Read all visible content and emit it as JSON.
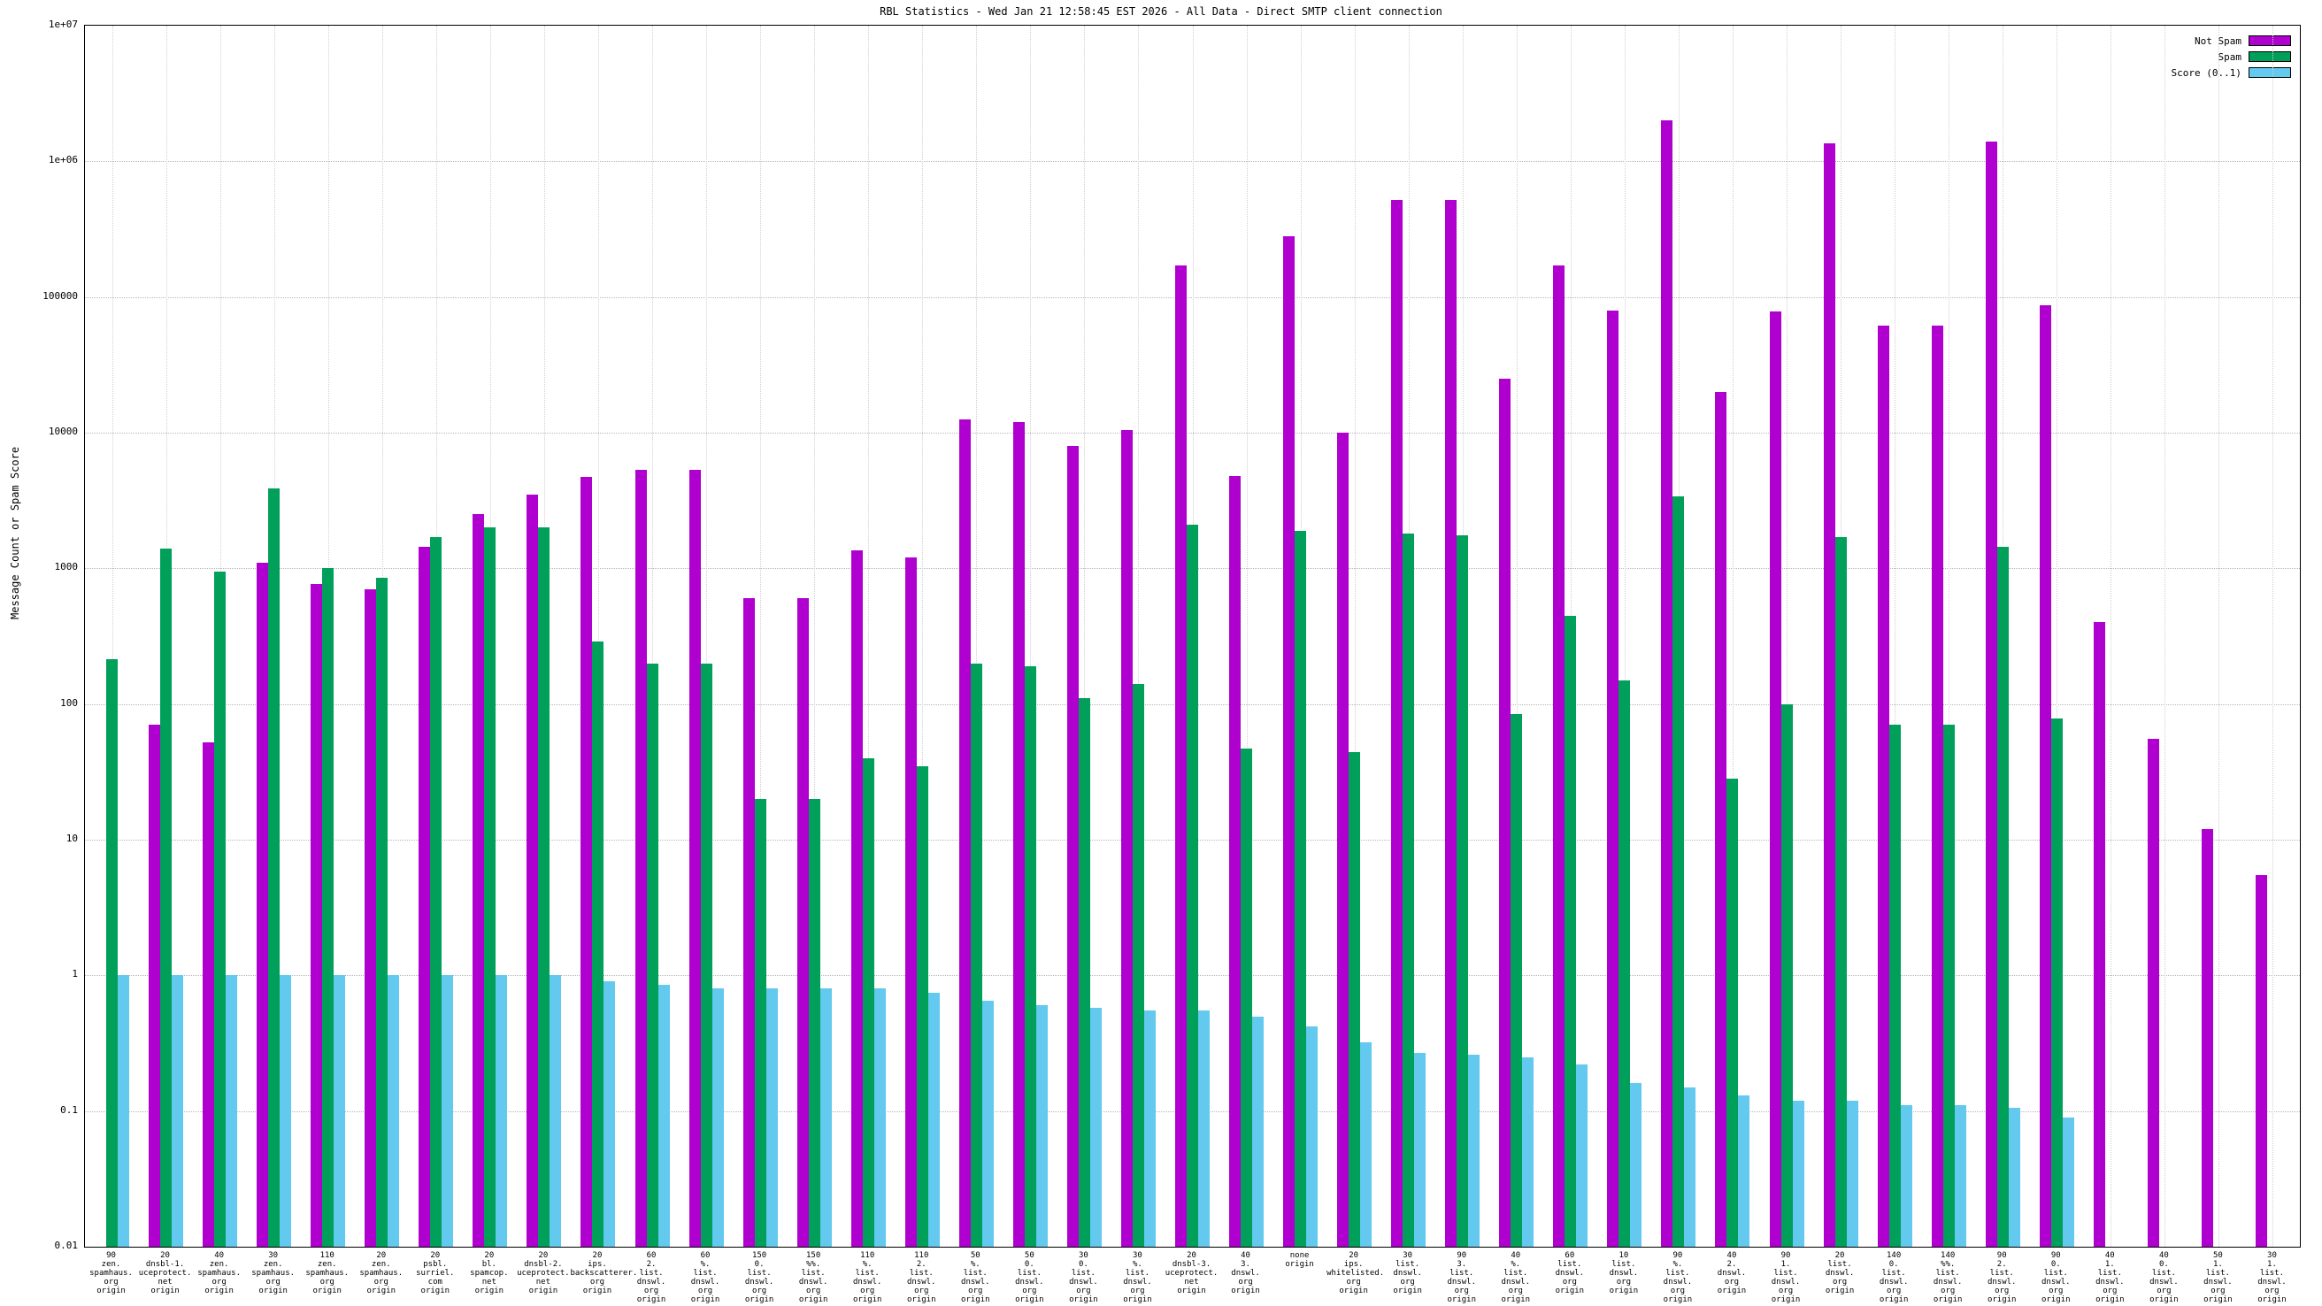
{
  "title": "RBL Statistics - Wed Jan 21 12:58:45 EST 2026 - All Data - Direct SMTP client connection",
  "ylabel": "Message Count or Spam Score",
  "legend": [
    {
      "label": "Not Spam",
      "color": "#b000d0"
    },
    {
      "label": "Spam",
      "color": "#00a05a"
    },
    {
      "label": "Score (0..1)",
      "color": "#63c9ee"
    }
  ],
  "chart_data": {
    "type": "bar",
    "title": "RBL Statistics - Wed Jan 21 12:58:45 EST 2026 - All Data - Direct SMTP client connection",
    "xlabel": "",
    "ylabel": "Message Count or Spam Score",
    "yscale": "log",
    "ylim": [
      0.01,
      10000000
    ],
    "grid": true,
    "legend_position": "top-right",
    "yticks": [
      {
        "label": "1e+07",
        "value": 10000000
      },
      {
        "label": "1e+06",
        "value": 1000000
      },
      {
        "label": "100000",
        "value": 100000
      },
      {
        "label": "10000",
        "value": 10000
      },
      {
        "label": "1000",
        "value": 1000
      },
      {
        "label": "100",
        "value": 100
      },
      {
        "label": "10",
        "value": 10
      },
      {
        "label": "1",
        "value": 1
      },
      {
        "label": "0.1",
        "value": 0.1
      },
      {
        "label": "0.01",
        "value": 0.01
      }
    ],
    "categories": [
      [
        "90",
        "zen.",
        "spamhaus.",
        "org",
        "origin"
      ],
      [
        "20",
        "dnsbl-1.",
        "uceprotect.",
        "net",
        "origin"
      ],
      [
        "40",
        "zen.",
        "spamhaus.",
        "org",
        "origin"
      ],
      [
        "30",
        "zen.",
        "spamhaus.",
        "org",
        "origin"
      ],
      [
        "110",
        "zen.",
        "spamhaus.",
        "org",
        "origin"
      ],
      [
        "20",
        "zen.",
        "spamhaus.",
        "org",
        "origin"
      ],
      [
        "20",
        "psbl.",
        "surriel.",
        "com",
        "origin"
      ],
      [
        "20",
        "bl.",
        "spamcop.",
        "net",
        "origin"
      ],
      [
        "20",
        "dnsbl-2.",
        "uceprotect.",
        "net",
        "origin"
      ],
      [
        "20",
        "ips.",
        "backscatterer.",
        "org",
        "origin"
      ],
      [
        "60",
        "2.",
        "list.",
        "dnswl.",
        "org",
        "origin"
      ],
      [
        "60",
        "%.",
        "list.",
        "dnswl.",
        "org",
        "origin"
      ],
      [
        "150",
        "0.",
        "list.",
        "dnswl.",
        "org",
        "origin"
      ],
      [
        "150",
        "%%.",
        "list.",
        "dnswl.",
        "org",
        "origin"
      ],
      [
        "110",
        "%.",
        "list.",
        "dnswl.",
        "org",
        "origin"
      ],
      [
        "110",
        "2.",
        "list.",
        "dnswl.",
        "org",
        "origin"
      ],
      [
        "50",
        "%.",
        "list.",
        "dnswl.",
        "org",
        "origin"
      ],
      [
        "50",
        "0.",
        "list.",
        "dnswl.",
        "org",
        "origin"
      ],
      [
        "30",
        "0.",
        "list.",
        "dnswl.",
        "org",
        "origin"
      ],
      [
        "30",
        "%.",
        "list.",
        "dnswl.",
        "org",
        "origin"
      ],
      [
        "20",
        "dnsbl-3.",
        "uceprotect.",
        "net",
        "origin"
      ],
      [
        "40",
        "3.",
        "dnswl.",
        "org",
        "origin"
      ],
      [
        "none",
        "origin"
      ],
      [
        "20",
        "ips.",
        "whitelisted.",
        "org",
        "origin"
      ],
      [
        "30",
        "list.",
        "dnswl.",
        "org",
        "origin"
      ],
      [
        "90",
        "3.",
        "list.",
        "dnswl.",
        "org",
        "origin"
      ],
      [
        "40",
        "%.",
        "list.",
        "dnswl.",
        "org",
        "origin"
      ],
      [
        "60",
        "list.",
        "dnswl.",
        "org",
        "origin"
      ],
      [
        "10",
        "list.",
        "dnswl.",
        "org",
        "origin"
      ],
      [
        "90",
        "%.",
        "list.",
        "dnswl.",
        "org",
        "origin"
      ],
      [
        "40",
        "2.",
        "dnswl.",
        "org",
        "origin"
      ],
      [
        "90",
        "1.",
        "list.",
        "dnswl.",
        "org",
        "origin"
      ],
      [
        "20",
        "list.",
        "dnswl.",
        "org",
        "origin"
      ],
      [
        "140",
        "0.",
        "list.",
        "dnswl.",
        "org",
        "origin"
      ],
      [
        "140",
        "%%.",
        "list.",
        "dnswl.",
        "org",
        "origin"
      ],
      [
        "90",
        "2.",
        "list.",
        "dnswl.",
        "org",
        "origin"
      ],
      [
        "90",
        "0.",
        "list.",
        "dnswl.",
        "org",
        "origin"
      ],
      [
        "40",
        "1.",
        "list.",
        "dnswl.",
        "org",
        "origin"
      ],
      [
        "40",
        "0.",
        "list.",
        "dnswl.",
        "org",
        "origin"
      ],
      [
        "50",
        "1.",
        "list.",
        "dnswl.",
        "org",
        "origin"
      ],
      [
        "30",
        "1.",
        "list.",
        "dnswl.",
        "org",
        "origin"
      ]
    ],
    "series": [
      {
        "name": "Not Spam",
        "color": "#b000d0",
        "values": [
          null,
          70,
          52,
          1100,
          770,
          700,
          1450,
          2500,
          3500,
          4700,
          5300,
          5300,
          600,
          600,
          1350,
          1200,
          12500,
          12000,
          8000,
          10500,
          170000,
          4800,
          280000,
          10000,
          520000,
          520000,
          25000,
          170000,
          80000,
          2000000,
          20000,
          78000,
          1350000,
          62000,
          62000,
          1400000,
          87000,
          400,
          55,
          12,
          5.5
        ]
      },
      {
        "name": "Spam",
        "color": "#00a05a",
        "values": [
          215,
          1400,
          950,
          3900,
          1000,
          850,
          1700,
          2000,
          2000,
          290,
          200,
          200,
          20,
          20,
          40,
          35,
          200,
          190,
          110,
          140,
          2100,
          47,
          1900,
          44,
          1800,
          1750,
          85,
          450,
          150,
          3400,
          28,
          100,
          1700,
          70,
          70,
          1450,
          78,
          null,
          null,
          null,
          null
        ]
      },
      {
        "name": "Score (0..1)",
        "color": "#63c9ee",
        "values": [
          1.0,
          1.0,
          1.0,
          1.0,
          1.0,
          1.0,
          1.0,
          1.0,
          1.0,
          0.9,
          0.85,
          0.8,
          0.8,
          0.8,
          0.8,
          0.75,
          0.65,
          0.6,
          0.58,
          0.55,
          0.55,
          0.5,
          0.42,
          0.32,
          0.27,
          0.26,
          0.25,
          0.22,
          0.16,
          0.15,
          0.13,
          0.12,
          0.12,
          0.11,
          0.11,
          0.105,
          0.09,
          null,
          null,
          null,
          null
        ]
      }
    ]
  }
}
